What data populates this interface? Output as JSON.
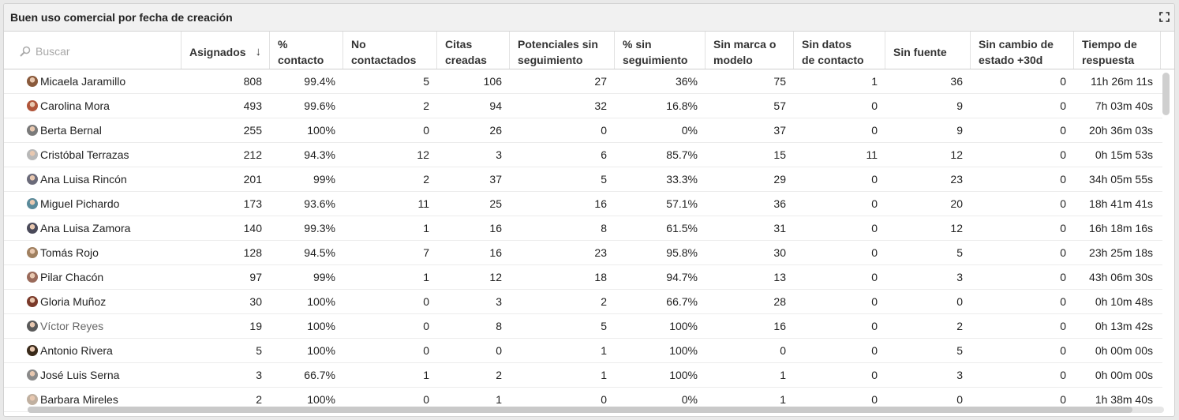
{
  "panel": {
    "title": "Buen uso comercial por fecha de creación"
  },
  "search": {
    "placeholder": "Buscar"
  },
  "headers": {
    "asignados": "Asignados",
    "contacto_l1": "%",
    "contacto_l2": "contacto",
    "no_contactados_l1": "No",
    "no_contactados_l2": "contactados",
    "citas_l1": "Citas",
    "citas_l2": "creadas",
    "potenciales_l1": "Potenciales sin",
    "potenciales_l2": "seguimiento",
    "pct_sin_l1": "% sin",
    "pct_sin_l2": "seguimiento",
    "sin_marca_l1": "Sin marca o",
    "sin_marca_l2": "modelo",
    "sin_datos_l1": "Sin datos",
    "sin_datos_l2": "de contacto",
    "sin_fuente": "Sin fuente",
    "sin_cambio_l1": "Sin cambio de",
    "sin_cambio_l2": "estado +30d",
    "tiempo_l1": "Tiempo de",
    "tiempo_l2": "respuesta",
    "sort_arrow": "↓"
  },
  "rows": [
    {
      "name": "Micaela Jaramillo",
      "asignados": "808",
      "contacto": "99.4%",
      "no_contactados": "5",
      "citas": "106",
      "potenciales": "27",
      "pct_sin": "36%",
      "sin_marca": "75",
      "sin_datos": "1",
      "sin_fuente": "36",
      "sin_cambio": "0",
      "tiempo": "11h 26m 11s",
      "avatar_color": "#8a5a3c"
    },
    {
      "name": "Carolina Mora",
      "asignados": "493",
      "contacto": "99.6%",
      "no_contactados": "2",
      "citas": "94",
      "potenciales": "32",
      "pct_sin": "16.8%",
      "sin_marca": "57",
      "sin_datos": "0",
      "sin_fuente": "9",
      "sin_cambio": "0",
      "tiempo": "7h 03m 40s",
      "avatar_color": "#b0553a"
    },
    {
      "name": "Berta Bernal",
      "asignados": "255",
      "contacto": "100%",
      "no_contactados": "0",
      "citas": "26",
      "potenciales": "0",
      "pct_sin": "0%",
      "sin_marca": "37",
      "sin_datos": "0",
      "sin_fuente": "9",
      "sin_cambio": "0",
      "tiempo": "20h 36m 03s",
      "avatar_color": "#7a7a7a"
    },
    {
      "name": "Cristóbal Terrazas",
      "asignados": "212",
      "contacto": "94.3%",
      "no_contactados": "12",
      "citas": "3",
      "potenciales": "6",
      "pct_sin": "85.7%",
      "sin_marca": "15",
      "sin_datos": "11",
      "sin_fuente": "12",
      "sin_cambio": "0",
      "tiempo": "0h 15m 53s",
      "avatar_color": "#b8b8b8"
    },
    {
      "name": "Ana Luisa Rincón",
      "asignados": "201",
      "contacto": "99%",
      "no_contactados": "2",
      "citas": "37",
      "potenciales": "5",
      "pct_sin": "33.3%",
      "sin_marca": "29",
      "sin_datos": "0",
      "sin_fuente": "23",
      "sin_cambio": "0",
      "tiempo": "34h 05m 55s",
      "avatar_color": "#6b6b7a"
    },
    {
      "name": "Miguel Pichardo",
      "asignados": "173",
      "contacto": "93.6%",
      "no_contactados": "11",
      "citas": "25",
      "potenciales": "16",
      "pct_sin": "57.1%",
      "sin_marca": "36",
      "sin_datos": "0",
      "sin_fuente": "20",
      "sin_cambio": "0",
      "tiempo": "18h 41m 41s",
      "avatar_color": "#5a8a9a"
    },
    {
      "name": "Ana Luisa Zamora",
      "asignados": "140",
      "contacto": "99.3%",
      "no_contactados": "1",
      "citas": "16",
      "potenciales": "8",
      "pct_sin": "61.5%",
      "sin_marca": "31",
      "sin_datos": "0",
      "sin_fuente": "12",
      "sin_cambio": "0",
      "tiempo": "16h 18m 16s",
      "avatar_color": "#4a4a5a"
    },
    {
      "name": "Tomás Rojo",
      "asignados": "128",
      "contacto": "94.5%",
      "no_contactados": "7",
      "citas": "16",
      "potenciales": "23",
      "pct_sin": "95.8%",
      "sin_marca": "30",
      "sin_datos": "0",
      "sin_fuente": "5",
      "sin_cambio": "0",
      "tiempo": "23h 25m 18s",
      "avatar_color": "#a08060"
    },
    {
      "name": "Pilar Chacón",
      "asignados": "97",
      "contacto": "99%",
      "no_contactados": "1",
      "citas": "12",
      "potenciales": "18",
      "pct_sin": "94.7%",
      "sin_marca": "13",
      "sin_datos": "0",
      "sin_fuente": "3",
      "sin_cambio": "0",
      "tiempo": "43h 06m 30s",
      "avatar_color": "#9a6a5a"
    },
    {
      "name": "Gloria Muñoz",
      "asignados": "30",
      "contacto": "100%",
      "no_contactados": "0",
      "citas": "3",
      "potenciales": "2",
      "pct_sin": "66.7%",
      "sin_marca": "28",
      "sin_datos": "0",
      "sin_fuente": "0",
      "sin_cambio": "0",
      "tiempo": "0h 10m 48s",
      "avatar_color": "#7a3a2a"
    },
    {
      "name": "Víctor Reyes",
      "asignados": "19",
      "contacto": "100%",
      "no_contactados": "0",
      "citas": "8",
      "potenciales": "5",
      "pct_sin": "100%",
      "sin_marca": "16",
      "sin_datos": "0",
      "sin_fuente": "2",
      "sin_cambio": "0",
      "tiempo": "0h 13m 42s",
      "avatar_color": "#5a5a5a",
      "muted": true
    },
    {
      "name": "Antonio Rivera",
      "asignados": "5",
      "contacto": "100%",
      "no_contactados": "0",
      "citas": "0",
      "potenciales": "1",
      "pct_sin": "100%",
      "sin_marca": "0",
      "sin_datos": "0",
      "sin_fuente": "5",
      "sin_cambio": "0",
      "tiempo": "0h 00m 00s",
      "avatar_color": "#3a2a1a"
    },
    {
      "name": "José Luis Serna",
      "asignados": "3",
      "contacto": "66.7%",
      "no_contactados": "1",
      "citas": "2",
      "potenciales": "1",
      "pct_sin": "100%",
      "sin_marca": "1",
      "sin_datos": "0",
      "sin_fuente": "3",
      "sin_cambio": "0",
      "tiempo": "0h 00m 00s",
      "avatar_color": "#8a8a8a"
    },
    {
      "name": "Barbara Mireles",
      "asignados": "2",
      "contacto": "100%",
      "no_contactados": "0",
      "citas": "1",
      "potenciales": "0",
      "pct_sin": "0%",
      "sin_marca": "1",
      "sin_datos": "0",
      "sin_fuente": "0",
      "sin_cambio": "0",
      "tiempo": "1h 38m 40s",
      "avatar_color": "#c0b0a0"
    }
  ]
}
